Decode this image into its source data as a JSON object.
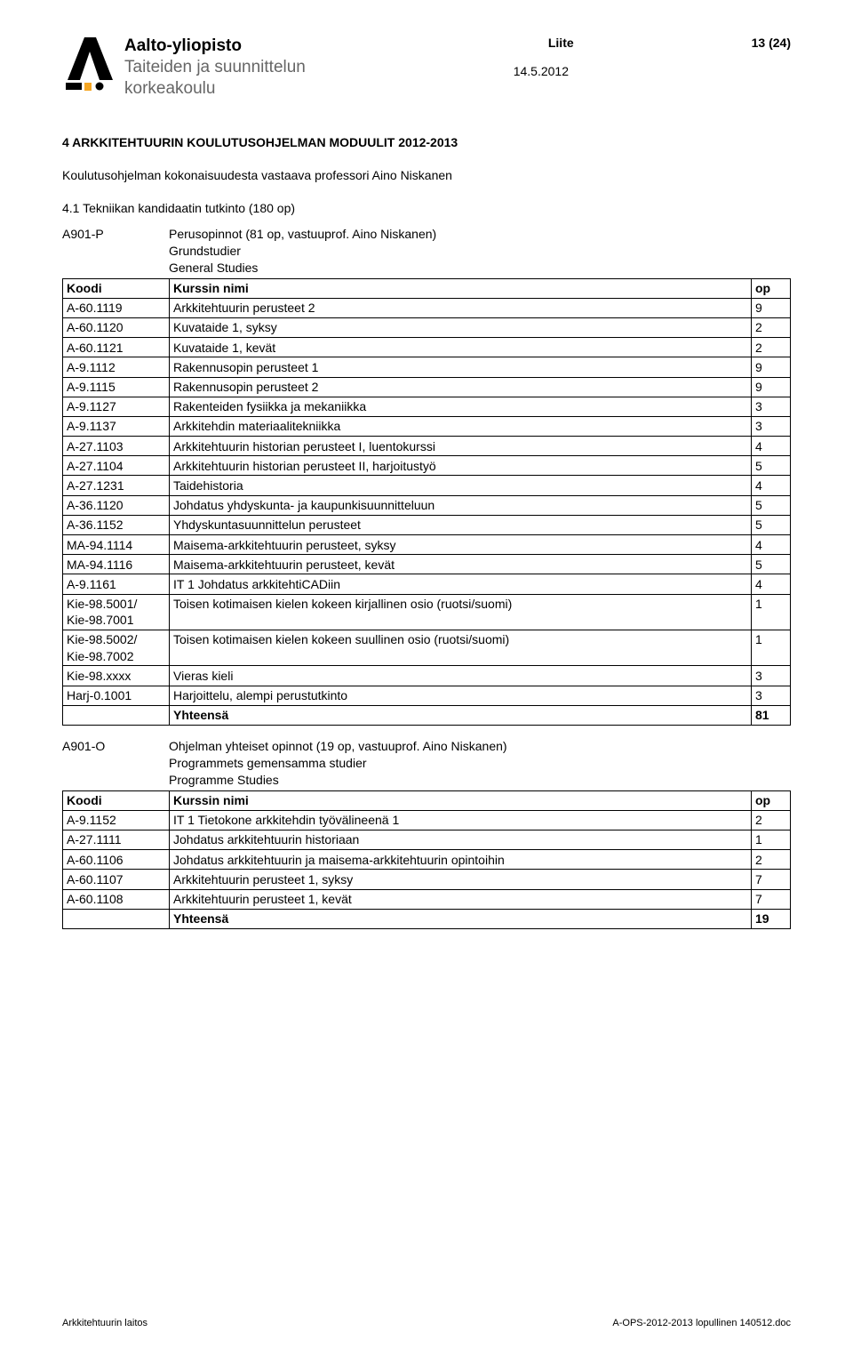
{
  "header": {
    "institution_l1": "Aalto-yliopisto",
    "institution_l2": "Taiteiden ja suunnittelun",
    "institution_l3": "korkeakoulu",
    "liite": "Liite",
    "page_info": "13 (24)",
    "date": "14.5.2012"
  },
  "section": {
    "title": "4  ARKKITEHTUURIN KOULUTUSOHJELMAN  MODUULIT 2012-2013",
    "subline": "Koulutusohjelman kokonaisuudesta vastaava professori Aino Niskanen",
    "degree": "4.1 Tekniikan kandidaatin tutkinto (180 op)"
  },
  "block1": {
    "code": "A901-P",
    "title1": "Perusopinnot (81 op, vastuuprof. Aino Niskanen)",
    "title2": "Grundstudier",
    "title3": "General Studies",
    "cols": {
      "c1": "Koodi",
      "c2": "Kurssin nimi",
      "c3": "op"
    },
    "rows": [
      {
        "c": "A-60.1119",
        "n": "Arkkitehtuurin perusteet 2",
        "o": "9"
      },
      {
        "c": "A-60.1120",
        "n": "Kuvataide 1, syksy",
        "o": "2"
      },
      {
        "c": "A-60.1121",
        "n": "Kuvataide 1, kevät",
        "o": "2"
      },
      {
        "c": "A-9.1112",
        "n": "Rakennusopin perusteet 1",
        "o": "9"
      },
      {
        "c": "A-9.1115",
        "n": "Rakennusopin perusteet 2",
        "o": "9"
      },
      {
        "c": "A-9.1127",
        "n": "Rakenteiden fysiikka ja mekaniikka",
        "o": "3"
      },
      {
        "c": "A-9.1137",
        "n": "Arkkitehdin materiaalitekniikka",
        "o": "3"
      },
      {
        "c": "A-27.1103",
        "n": "Arkkitehtuurin historian perusteet I, luentokurssi",
        "o": "4"
      },
      {
        "c": "A-27.1104",
        "n": "Arkkitehtuurin historian perusteet II, harjoitustyö",
        "o": "5"
      },
      {
        "c": "A-27.1231",
        "n": "Taidehistoria",
        "o": "4"
      },
      {
        "c": "A-36.1120",
        "n": "Johdatus yhdyskunta- ja kaupunkisuunnitteluun",
        "o": "5"
      },
      {
        "c": "A-36.1152",
        "n": "Yhdyskuntasuunnittelun perusteet",
        "o": "5"
      },
      {
        "c": "MA-94.1114",
        "n": "Maisema-arkkitehtuurin perusteet, syksy",
        "o": "4"
      },
      {
        "c": "MA-94.1116",
        "n": "Maisema-arkkitehtuurin perusteet, kevät",
        "o": "5"
      },
      {
        "c": "A-9.1161",
        "n": "IT 1 Johdatus arkkitehtiCADiin",
        "o": "4"
      },
      {
        "c": "Kie-98.5001/\nKie-98.7001",
        "n": "Toisen kotimaisen kielen kokeen kirjallinen osio (ruotsi/suomi)",
        "o": "1"
      },
      {
        "c": "Kie-98.5002/\nKie-98.7002",
        "n": "Toisen kotimaisen kielen kokeen suullinen osio (ruotsi/suomi)",
        "o": "1"
      },
      {
        "c": "Kie-98.xxxx",
        "n": "Vieras kieli",
        "o": "3"
      },
      {
        "c": "Harj-0.1001",
        "n": "Harjoittelu, alempi perustutkinto",
        "o": "3"
      }
    ],
    "total": {
      "label": "Yhteensä",
      "value": "81"
    }
  },
  "block2": {
    "code": "A901-O",
    "title1": "Ohjelman yhteiset opinnot (19 op, vastuuprof. Aino Niskanen)",
    "title2": "Programmets gemensamma studier",
    "title3": "Programme Studies",
    "cols": {
      "c1": "Koodi",
      "c2": "Kurssin nimi",
      "c3": "op"
    },
    "rows": [
      {
        "c": "A-9.1152",
        "n": "IT 1 Tietokone arkkitehdin työvälineenä 1",
        "o": "2"
      },
      {
        "c": "A-27.1111",
        "n": "Johdatus arkkitehtuurin historiaan",
        "o": "1"
      },
      {
        "c": "A-60.1106",
        "n": "Johdatus arkkitehtuurin ja maisema-arkkitehtuurin opintoihin",
        "o": "2"
      },
      {
        "c": "A-60.1107",
        "n": "Arkkitehtuurin perusteet 1, syksy",
        "o": "7"
      },
      {
        "c": "A-60.1108",
        "n": "Arkkitehtuurin perusteet 1, kevät",
        "o": "7"
      }
    ],
    "total": {
      "label": "Yhteensä",
      "value": "19"
    }
  },
  "footer": {
    "left": "Arkkitehtuurin laitos",
    "right": "A-OPS-2012-2013 lopullinen 140512.doc"
  },
  "style": {
    "logo_black": "#000000",
    "logo_accent": "#f5a623",
    "text_gray": "#666666"
  }
}
